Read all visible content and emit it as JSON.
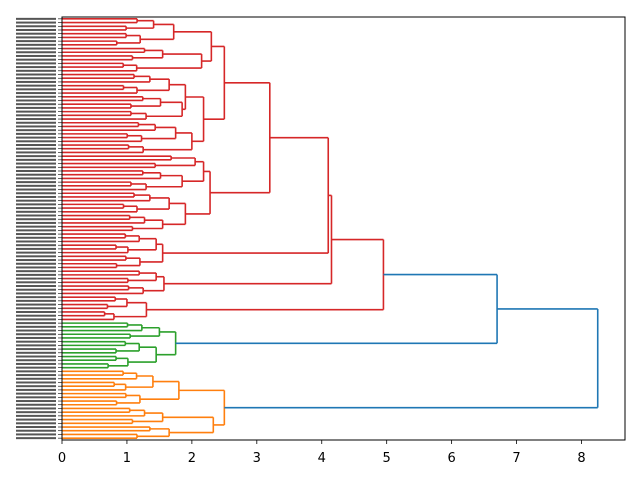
{
  "chart_data": {
    "type": "dendrogram",
    "orientation": "left",
    "xlim": [
      0,
      8.67
    ],
    "xticks": [
      "0",
      "1",
      "2",
      "3",
      "4",
      "5",
      "6",
      "7",
      "8"
    ],
    "grid": false,
    "leaf_labels_legible": false,
    "colors": {
      "above_threshold": "#1f77b4",
      "red": "#d62728",
      "green": "#2ca02c",
      "orange": "#ff7f0e"
    },
    "tree": {
      "h": 8.25,
      "color": "above_threshold",
      "c": [
        {
          "h": 6.7,
          "color": "above_threshold",
          "c": [
            {
              "h": 4.95,
              "color": "red",
              "c": [
                {
                  "h": 4.15,
                  "c": [
                    {
                      "h": 4.1,
                      "c": [
                        {
                          "h": 3.2,
                          "c": [
                            {
                              "h": 2.5,
                              "c": [
                                {
                                  "h": 2.3,
                                  "c": [
                                    {
                                      "h": 1.72,
                                      "n": 8
                                    },
                                    {
                                      "h": 2.15,
                                      "c": [
                                        {
                                          "h": 1.55,
                                          "n": 4
                                        },
                                        {
                                          "h": 1.15,
                                          "n": 3
                                        }
                                      ]
                                    }
                                  ]
                                },
                                {
                                  "h": 2.18,
                                  "c": [
                                    {
                                      "h": 1.9,
                                      "c": [
                                        {
                                          "h": 1.65,
                                          "n": 6
                                        },
                                        {
                                          "h": 1.85,
                                          "n": 7
                                        }
                                      ]
                                    },
                                    {
                                      "h": 2.0,
                                      "c": [
                                        {
                                          "h": 1.75,
                                          "n": 6
                                        },
                                        {
                                          "h": 1.25,
                                          "n": 3
                                        }
                                      ]
                                    }
                                  ]
                                }
                              ]
                            },
                            {
                              "h": 2.28,
                              "c": [
                                {
                                  "h": 2.18,
                                  "c": [
                                    {
                                      "h": 2.05,
                                      "n": 4
                                    },
                                    {
                                      "h": 1.85,
                                      "n": 6
                                    }
                                  ]
                                },
                                {
                                  "h": 1.9,
                                  "c": [
                                    {
                                      "h": 1.65,
                                      "n": 6
                                    },
                                    {
                                      "h": 1.55,
                                      "n": 5
                                    }
                                  ]
                                }
                              ]
                            }
                          ]
                        },
                        {
                          "h": 1.55,
                          "c": [
                            {
                              "h": 1.45,
                              "n": 6
                            },
                            {
                              "h": 1.2,
                              "n": 4
                            }
                          ]
                        }
                      ]
                    },
                    {
                      "h": 1.57,
                      "c": [
                        {
                          "h": 1.45,
                          "n": 4
                        },
                        {
                          "h": 1.25,
                          "n": 3
                        }
                      ]
                    }
                  ]
                },
                {
                  "h": 1.3,
                  "c": [
                    {
                      "h": 1.0,
                      "n": 4
                    },
                    {
                      "h": 0.8,
                      "n": 3
                    }
                  ]
                }
              ]
            },
            {
              "h": 1.75,
              "color": "green",
              "c": [
                {
                  "h": 1.5,
                  "n": 5
                },
                {
                  "h": 1.45,
                  "n": 8
                }
              ]
            }
          ]
        },
        {
          "h": 2.5,
          "color": "orange",
          "c": [
            {
              "h": 1.8,
              "c": [
                {
                  "h": 1.4,
                  "n": 6
                },
                {
                  "h": 1.2,
                  "n": 4
                }
              ]
            },
            {
              "h": 2.33,
              "c": [
                {
                  "h": 1.55,
                  "n": 5
                },
                {
                  "h": 1.65,
                  "n": 4
                }
              ]
            }
          ]
        }
      ]
    }
  }
}
